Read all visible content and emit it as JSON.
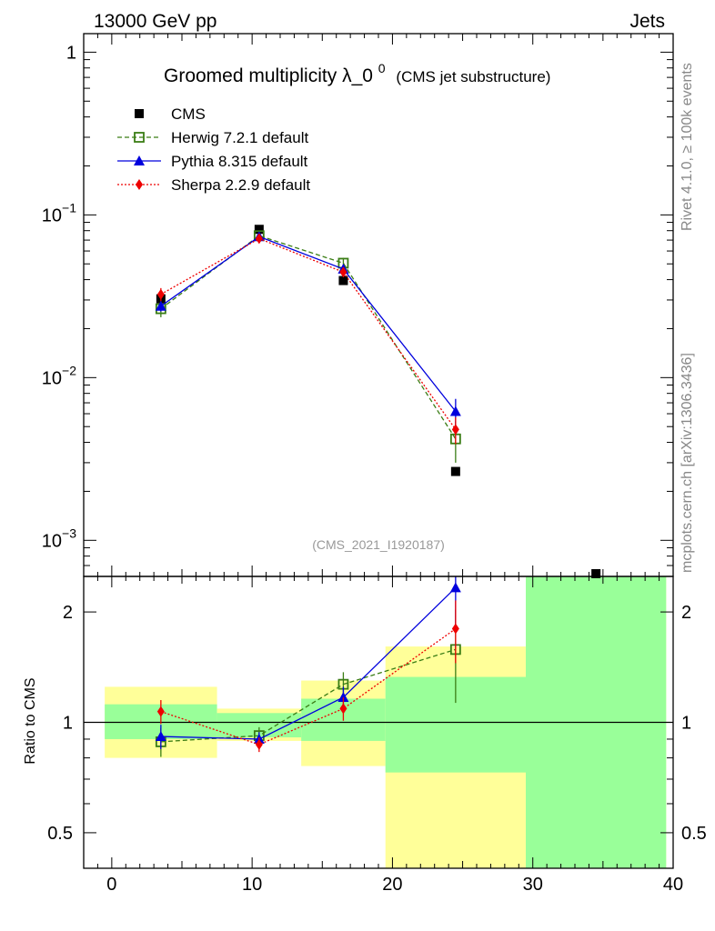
{
  "header": {
    "left": "13000 GeV pp",
    "right": "Jets"
  },
  "title": {
    "main": "Groomed multiplicity",
    "symbol": "λ_0",
    "sup": "0",
    "sub": "(CMS jet substructure)"
  },
  "side_labels": {
    "rivet": "Rivet 4.1.0, ≥ 100k events",
    "mcplots": "mcplots.cern.ch [arXiv:1306.3436]"
  },
  "analysis_id": "(CMS_2021_I1920187)",
  "ratio_ylabel": "Ratio to CMS",
  "colors": {
    "herwig": "#3a7d15",
    "pythia": "#0000dd",
    "sherpa": "#ee0000",
    "data": "#000000",
    "band_inner": "#99ff99",
    "band_outer": "#ffff99"
  },
  "chart_data": [
    {
      "type": "scatter",
      "panel": "main",
      "yscale": "log",
      "ylim": [
        0.0006,
        1.3
      ],
      "xlim": [
        -2,
        40
      ],
      "ytick_labels": [
        {
          "base": "1",
          "exp": ""
        },
        {
          "base": "10",
          "exp": "−1"
        },
        {
          "base": "10",
          "exp": "−2"
        },
        {
          "base": "10",
          "exp": "−3"
        }
      ],
      "ytick_values": [
        1,
        0.1,
        0.01,
        0.001
      ],
      "legend": {
        "placement": "top-left",
        "entries": [
          "CMS",
          "Herwig 7.2.1 default",
          "Pythia 8.315 default",
          "Sherpa 2.2.9 default"
        ]
      },
      "series": [
        {
          "name": "CMS",
          "marker": "square",
          "x": [
            3.5,
            10.5,
            16.5,
            24.5,
            34.5
          ],
          "y": [
            0.0305,
            0.0815,
            0.0395,
            0.00265,
            0.00058
          ]
        },
        {
          "name": "Herwig 7.2.1 default",
          "marker": "open-square",
          "line": "dashed",
          "x": [
            3.5,
            10.5,
            16.5,
            24.5
          ],
          "y": [
            0.0265,
            0.0745,
            0.0505,
            0.0042
          ],
          "err": [
            0.003,
            0.004,
            0.004,
            0.0012
          ]
        },
        {
          "name": "Pythia 8.315 default",
          "marker": "triangle",
          "line": "solid",
          "x": [
            3.5,
            10.5,
            16.5,
            24.5
          ],
          "y": [
            0.0275,
            0.0735,
            0.0465,
            0.0062
          ],
          "err": [
            0.002,
            0.003,
            0.003,
            0.0012
          ]
        },
        {
          "name": "Sherpa 2.2.9 default",
          "marker": "diamond",
          "line": "dotted",
          "x": [
            3.5,
            10.5,
            16.5,
            24.5
          ],
          "y": [
            0.0325,
            0.0715,
            0.0445,
            0.0048
          ],
          "err": [
            0.003,
            0.003,
            0.003,
            0.0009
          ]
        }
      ]
    },
    {
      "type": "scatter",
      "panel": "ratio",
      "yscale": "log",
      "ylim": [
        0.4,
        2.5
      ],
      "xlim": [
        -2,
        40
      ],
      "ylabel": "Ratio to CMS",
      "ytick_labels": [
        "2",
        "1",
        "0.5"
      ],
      "ytick_values": [
        2,
        1,
        0.5
      ],
      "xtick_labels": [
        "0",
        "10",
        "20",
        "30",
        "40"
      ],
      "xtick_values": [
        0,
        10,
        20,
        30,
        40
      ],
      "reference_line": 1,
      "bands": [
        {
          "x": [
            -0.5,
            7.5
          ],
          "inner": [
            0.9,
            1.12
          ],
          "outer": [
            0.8,
            1.25
          ]
        },
        {
          "x": [
            7.5,
            13.5
          ],
          "inner": [
            0.91,
            1.06
          ],
          "outer": [
            0.89,
            1.09
          ]
        },
        {
          "x": [
            13.5,
            19.5
          ],
          "inner": [
            0.89,
            1.16
          ],
          "outer": [
            0.76,
            1.3
          ]
        },
        {
          "x": [
            19.5,
            29.5
          ],
          "inner": [
            0.73,
            1.33
          ],
          "outer": [
            0.4,
            1.61
          ]
        },
        {
          "x": [
            29.5,
            39.5
          ],
          "inner": [
            0.4,
            2.5
          ],
          "outer": [
            0.4,
            2.5
          ]
        }
      ],
      "series": [
        {
          "name": "Herwig 7.2.1 default",
          "x": [
            3.5,
            10.5,
            16.5,
            24.5
          ],
          "y": [
            0.885,
            0.92,
            1.27,
            1.58
          ],
          "err": [
            0.08,
            0.05,
            0.1,
            0.45
          ]
        },
        {
          "name": "Pythia 8.315 default",
          "x": [
            3.5,
            10.5,
            16.5,
            24.5
          ],
          "y": [
            0.915,
            0.9,
            1.17,
            2.33
          ],
          "err": [
            0.07,
            0.04,
            0.08,
            0.5
          ]
        },
        {
          "name": "Sherpa 2.2.9 default",
          "x": [
            3.5,
            10.5,
            16.5,
            24.5
          ],
          "y": [
            1.07,
            0.87,
            1.09,
            1.8
          ],
          "err": [
            0.08,
            0.04,
            0.08,
            0.35
          ]
        }
      ]
    }
  ]
}
